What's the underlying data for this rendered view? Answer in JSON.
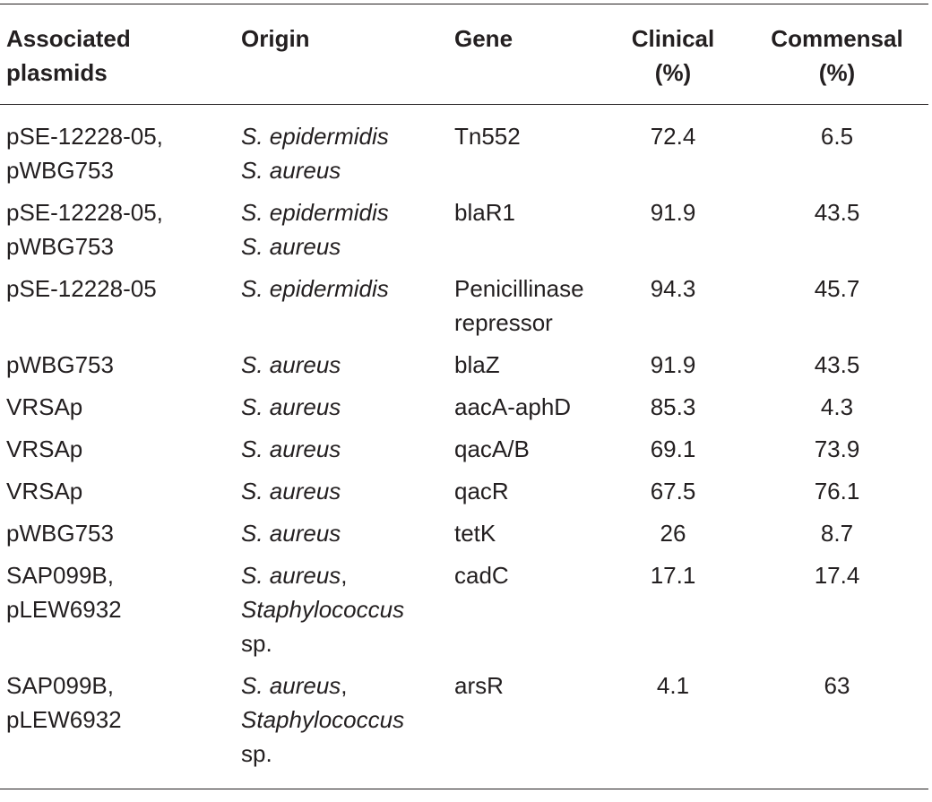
{
  "table": {
    "headers": {
      "plasmids": [
        "Associated",
        "plasmids"
      ],
      "origin": "Origin",
      "gene": "Gene",
      "clinical": [
        "Clinical",
        "(%)"
      ],
      "commensal": [
        "Commensal",
        "(%)"
      ]
    },
    "rows": [
      {
        "plasmids": [
          "pSE-12228-05,",
          "pWBG753"
        ],
        "origin": [
          {
            "text": "S. epidermidis",
            "suffix": ""
          },
          {
            "text": "S. aureus",
            "suffix": ""
          }
        ],
        "gene": [
          "Tn552"
        ],
        "clinical": "72.4",
        "commensal": "6.5"
      },
      {
        "plasmids": [
          "pSE-12228-05,",
          "pWBG753"
        ],
        "origin": [
          {
            "text": "S. epidermidis",
            "suffix": ""
          },
          {
            "text": "S. aureus",
            "suffix": ""
          }
        ],
        "gene": [
          "blaR1"
        ],
        "clinical": "91.9",
        "commensal": "43.5"
      },
      {
        "plasmids": [
          "pSE-12228-05"
        ],
        "origin": [
          {
            "text": "S. epidermidis",
            "suffix": ""
          }
        ],
        "gene": [
          "Penicillinase",
          "repressor"
        ],
        "clinical": "94.3",
        "commensal": "45.7"
      },
      {
        "plasmids": [
          "pWBG753"
        ],
        "origin": [
          {
            "text": "S. aureus",
            "suffix": ""
          }
        ],
        "gene": [
          "blaZ"
        ],
        "clinical": "91.9",
        "commensal": "43.5"
      },
      {
        "plasmids": [
          "VRSAp"
        ],
        "origin": [
          {
            "text": "S. aureus",
            "suffix": ""
          }
        ],
        "gene": [
          "aacA-aphD"
        ],
        "clinical": "85.3",
        "commensal": "4.3"
      },
      {
        "plasmids": [
          "VRSAp"
        ],
        "origin": [
          {
            "text": "S. aureus",
            "suffix": ""
          }
        ],
        "gene": [
          "qacA/B"
        ],
        "clinical": "69.1",
        "commensal": "73.9"
      },
      {
        "plasmids": [
          "VRSAp"
        ],
        "origin": [
          {
            "text": "S. aureus",
            "suffix": ""
          }
        ],
        "gene": [
          "qacR"
        ],
        "clinical": "67.5",
        "commensal": "76.1"
      },
      {
        "plasmids": [
          "pWBG753"
        ],
        "origin": [
          {
            "text": "S. aureus",
            "suffix": ""
          }
        ],
        "gene": [
          "tetK"
        ],
        "clinical": "26",
        "commensal": "8.7"
      },
      {
        "plasmids": [
          "SAP099B,",
          "pLEW6932"
        ],
        "origin": [
          {
            "text": "S. aureus",
            "suffix": ","
          },
          {
            "text": "Staphylococcus",
            "suffix": ""
          },
          {
            "text": "",
            "suffix": "sp."
          }
        ],
        "gene": [
          "cadC"
        ],
        "clinical": "17.1",
        "commensal": "17.4"
      },
      {
        "plasmids": [
          "SAP099B,",
          "pLEW6932"
        ],
        "origin": [
          {
            "text": "S. aureus",
            "suffix": ","
          },
          {
            "text": "Staphylococcus",
            "suffix": ""
          },
          {
            "text": "",
            "suffix": "sp."
          }
        ],
        "gene": [
          "arsR"
        ],
        "clinical": "4.1",
        "commensal": "63"
      }
    ]
  }
}
